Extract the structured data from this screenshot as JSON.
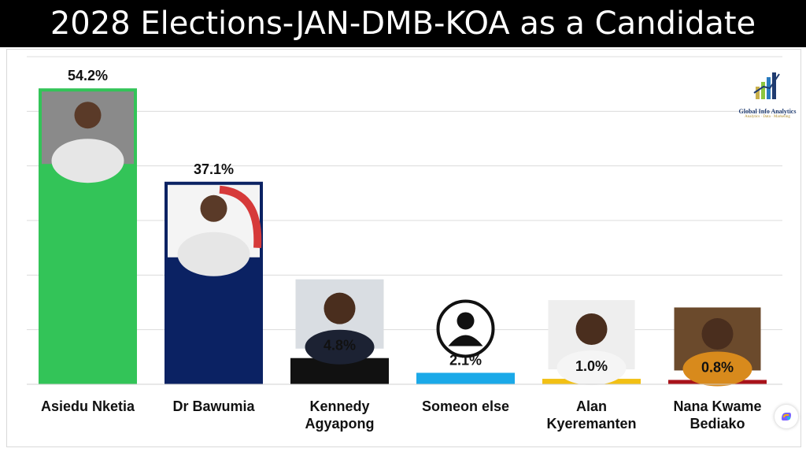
{
  "chart_data": {
    "type": "bar",
    "title": "2028 Elections-JAN-DMB-KOA as a Candidate",
    "categories": [
      "Asiedu Nketia",
      "Dr Bawumia",
      "Kennedy Agyapong",
      "Someon else",
      "Alan Kyeremanten",
      "Nana Kwame Bediako"
    ],
    "category_lines": [
      [
        "Asiedu Nketia"
      ],
      [
        "Dr Bawumia"
      ],
      [
        "Kennedy",
        "Agyapong"
      ],
      [
        "Someon else"
      ],
      [
        "Alan",
        "Kyeremanten"
      ],
      [
        "Nana Kwame",
        "Bediako"
      ]
    ],
    "values": [
      54.2,
      37.1,
      4.8,
      2.1,
      1.0,
      0.8
    ],
    "value_labels": [
      "54.2%",
      "37.1%",
      "4.8%",
      "2.1%",
      "1.0%",
      "0.8%"
    ],
    "colors": [
      "#33c458",
      "#0b2263",
      "#111111",
      "#1ba9e8",
      "#f2c014",
      "#a8121a"
    ],
    "ylim": [
      0,
      60
    ],
    "grid": true
  },
  "logo": {
    "name": "Global Info Analytics",
    "tagline": "Analytics · Data · Marketing"
  },
  "icons": {
    "placeholder": "person-silhouette-icon",
    "app": "copilot-icon"
  }
}
